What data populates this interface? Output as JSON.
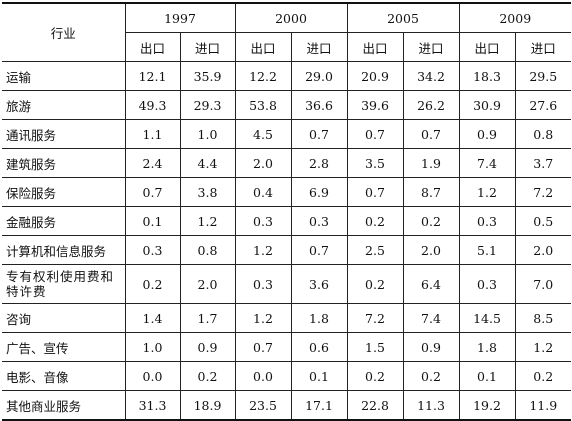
{
  "table": {
    "row_header": "行业",
    "years": [
      "1997",
      "2000",
      "2005",
      "2009"
    ],
    "sub_headers": [
      "出口",
      "进口"
    ],
    "rows": [
      {
        "name": "运输",
        "values": [
          "12.1",
          "35.9",
          "12.2",
          "29.0",
          "20.9",
          "34.2",
          "18.3",
          "29.5"
        ]
      },
      {
        "name": "旅游",
        "values": [
          "49.3",
          "29.3",
          "53.8",
          "36.6",
          "39.6",
          "26.2",
          "30.9",
          "27.6"
        ]
      },
      {
        "name": "通讯服务",
        "values": [
          "1.1",
          "1.0",
          "4.5",
          "0.7",
          "0.7",
          "0.7",
          "0.9",
          "0.8"
        ]
      },
      {
        "name": "建筑服务",
        "values": [
          "2.4",
          "4.4",
          "2.0",
          "2.8",
          "3.5",
          "1.9",
          "7.4",
          "3.7"
        ]
      },
      {
        "name": "保险服务",
        "values": [
          "0.7",
          "3.8",
          "0.4",
          "6.9",
          "0.7",
          "8.7",
          "1.2",
          "7.2"
        ]
      },
      {
        "name": "金融服务",
        "values": [
          "0.1",
          "1.2",
          "0.3",
          "0.3",
          "0.2",
          "0.2",
          "0.3",
          "0.5"
        ]
      },
      {
        "name": "计算机和信息服务",
        "values": [
          "0.3",
          "0.8",
          "1.2",
          "0.7",
          "2.5",
          "2.0",
          "5.1",
          "2.0"
        ]
      },
      {
        "name": "专有权利使用费和特许费",
        "values": [
          "0.2",
          "2.0",
          "0.3",
          "3.6",
          "0.2",
          "6.4",
          "0.3",
          "7.0"
        ]
      },
      {
        "name": "咨询",
        "values": [
          "1.4",
          "1.7",
          "1.2",
          "1.8",
          "7.2",
          "7.4",
          "14.5",
          "8.5"
        ]
      },
      {
        "name": "广告、宣传",
        "values": [
          "1.0",
          "0.9",
          "0.7",
          "0.6",
          "1.5",
          "0.9",
          "1.8",
          "1.2"
        ]
      },
      {
        "name": "电影、音像",
        "values": [
          "0.0",
          "0.2",
          "0.0",
          "0.1",
          "0.2",
          "0.2",
          "0.1",
          "0.2"
        ]
      },
      {
        "name": "其他商业服务",
        "values": [
          "31.3",
          "18.9",
          "23.5",
          "17.1",
          "22.8",
          "11.3",
          "19.2",
          "11.9"
        ]
      }
    ]
  }
}
